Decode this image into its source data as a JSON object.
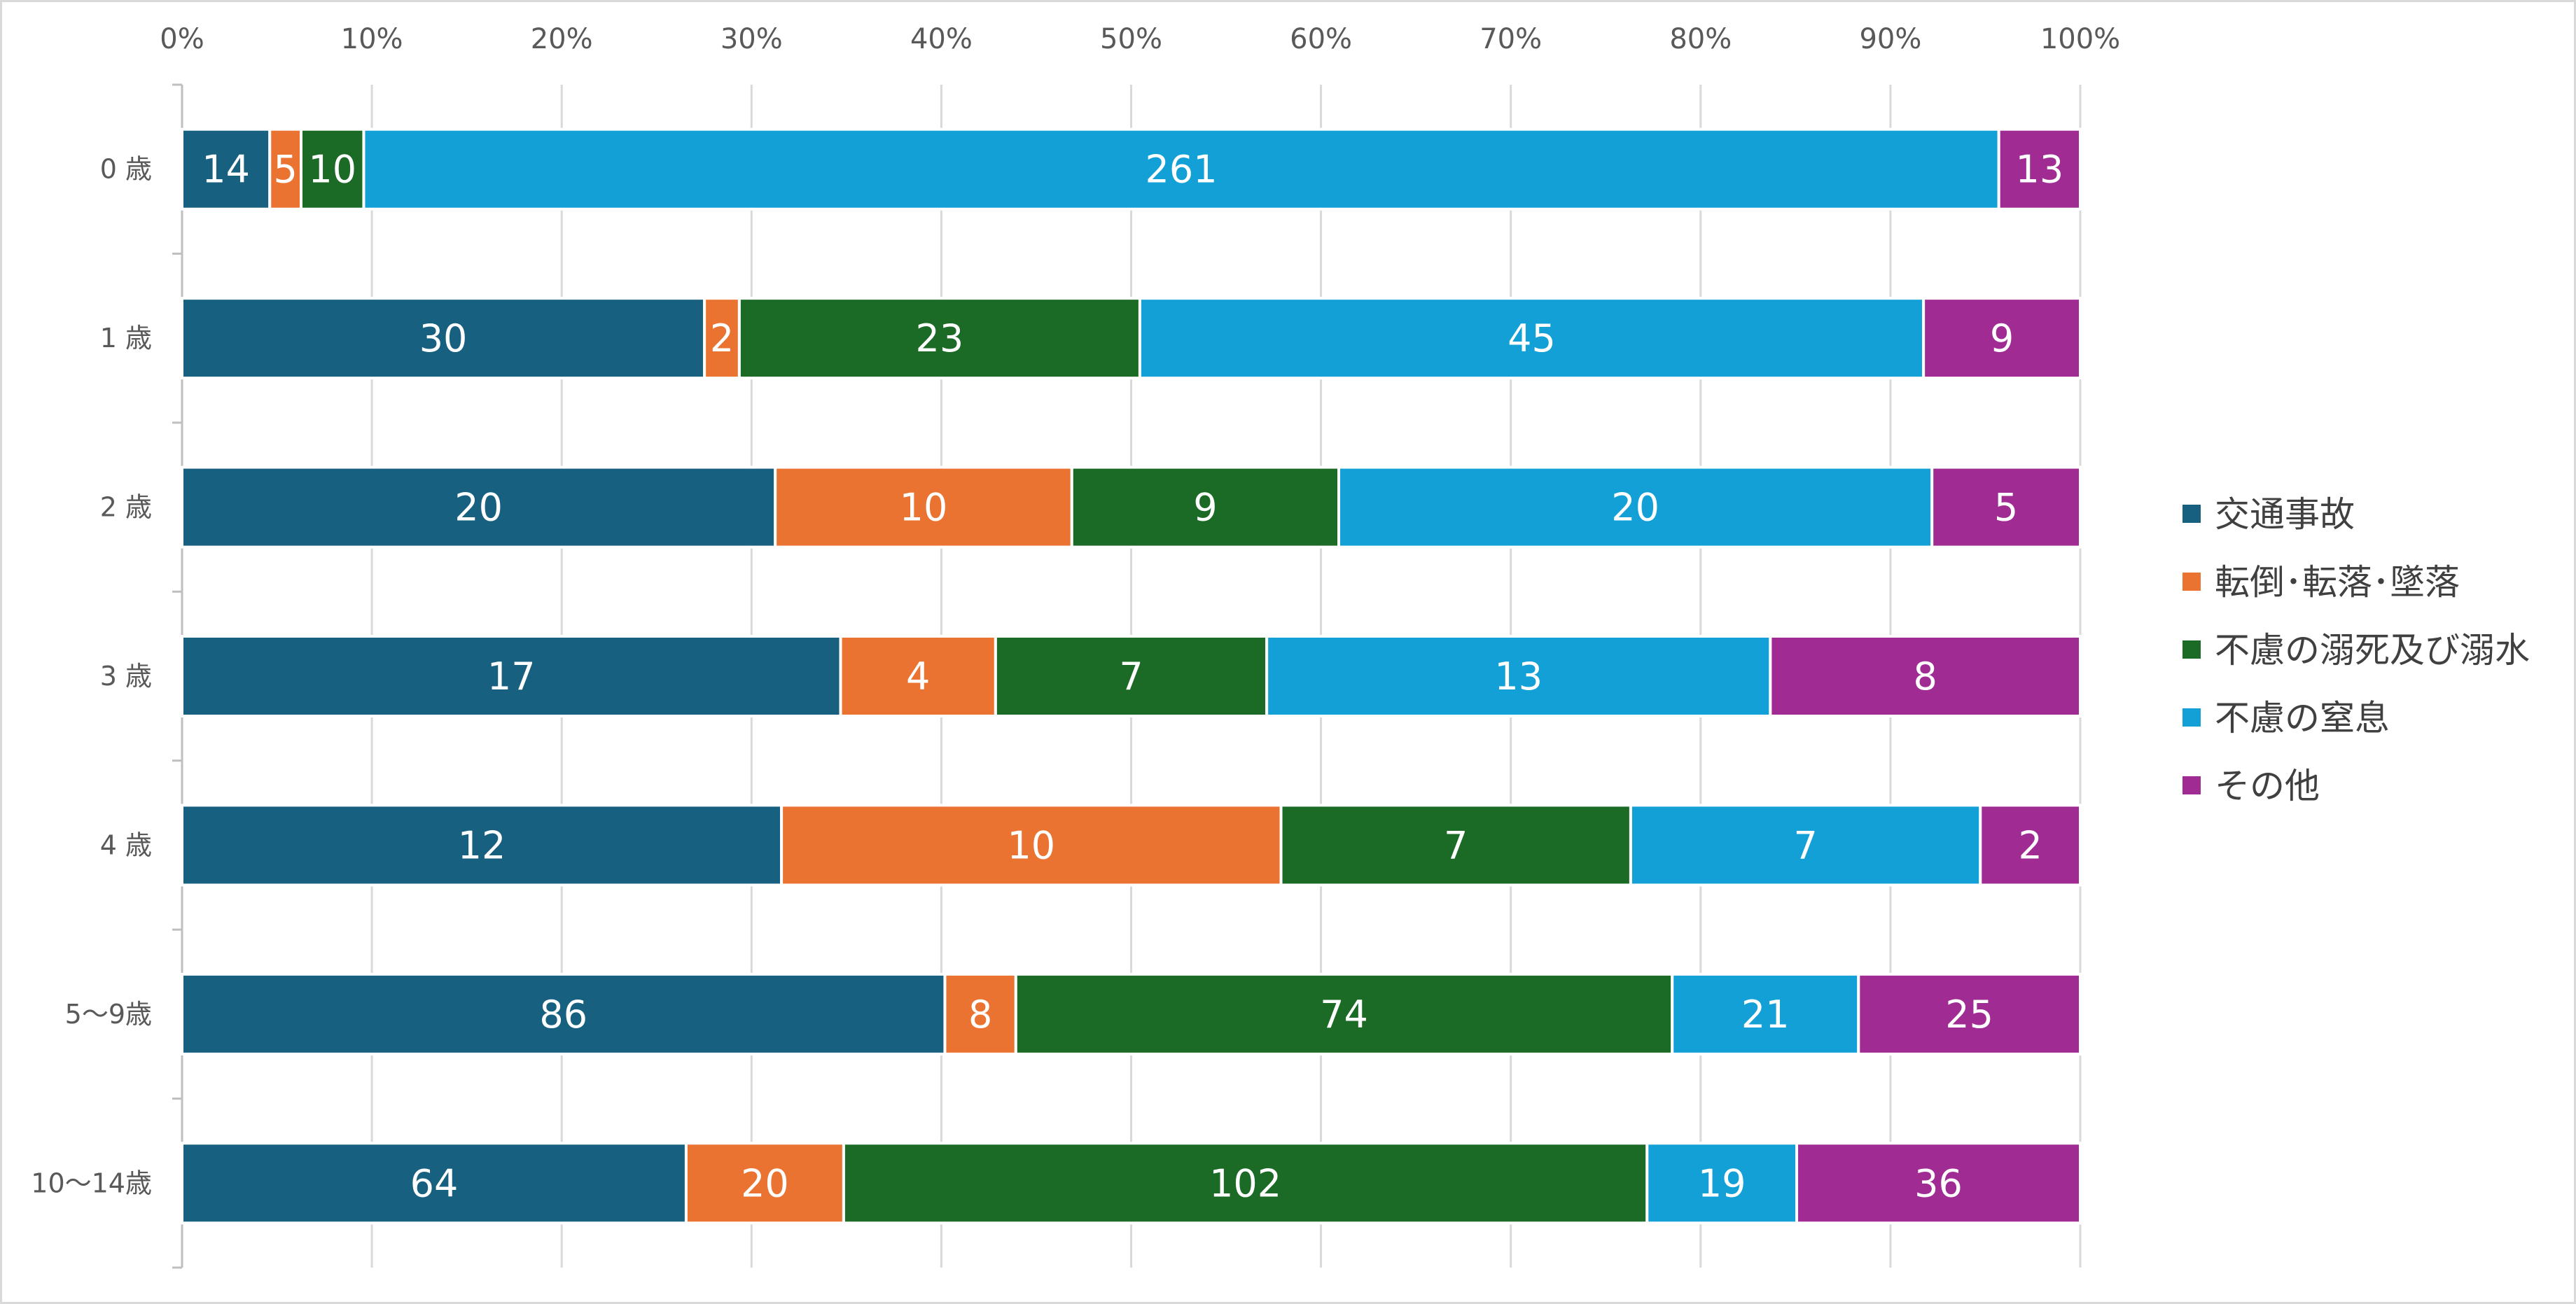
{
  "chart_data": {
    "type": "bar",
    "orientation": "horizontal",
    "stacking": "percent",
    "categories": [
      "0 歳",
      "1 歳",
      "2 歳",
      "3 歳",
      "4 歳",
      "5～9歳",
      "10～14歳"
    ],
    "series": [
      {
        "name": "交通事故",
        "color": "#17607f",
        "values": [
          14,
          30,
          20,
          17,
          12,
          86,
          64
        ]
      },
      {
        "name": "転倒･転落･墜落",
        "color": "#eb7332",
        "values": [
          5,
          2,
          10,
          4,
          10,
          8,
          20
        ]
      },
      {
        "name": "不慮の溺死及び溺水",
        "color": "#1b6b27",
        "values": [
          10,
          23,
          9,
          7,
          7,
          74,
          102
        ]
      },
      {
        "name": "不慮の窒息",
        "color": "#12a0d7",
        "values": [
          261,
          45,
          20,
          13,
          7,
          21,
          19
        ]
      },
      {
        "name": "その他",
        "color": "#a02b93",
        "values": [
          13,
          9,
          5,
          8,
          2,
          25,
          36
        ]
      }
    ],
    "xlim": [
      0,
      100
    ],
    "x_ticks": [
      "0%",
      "10%",
      "20%",
      "30%",
      "40%",
      "50%",
      "60%",
      "70%",
      "80%",
      "90%",
      "100%"
    ],
    "grid": true,
    "legend_position": "right",
    "title": "",
    "xlabel": "",
    "ylabel": ""
  }
}
